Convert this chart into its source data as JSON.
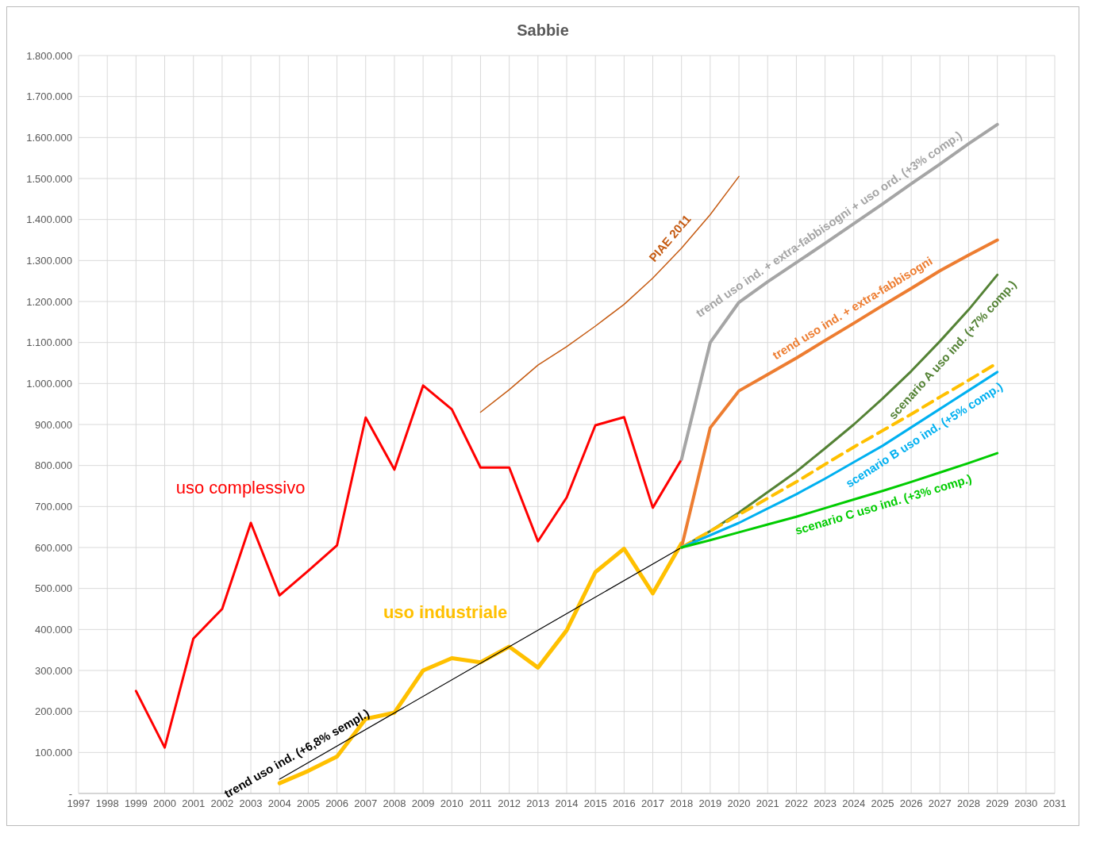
{
  "chart_data": {
    "type": "line",
    "title": "Sabbie",
    "xlim": [
      1997,
      2031
    ],
    "xticks": [
      1997,
      1998,
      1999,
      2000,
      2001,
      2002,
      2003,
      2004,
      2005,
      2006,
      2007,
      2008,
      2009,
      2010,
      2011,
      2012,
      2013,
      2014,
      2015,
      2016,
      2017,
      2018,
      2019,
      2020,
      2021,
      2022,
      2023,
      2024,
      2025,
      2026,
      2027,
      2028,
      2029,
      2030,
      2031
    ],
    "ylim": [
      0,
      1800000
    ],
    "yticks": [
      {
        "value": 0,
        "label": "-"
      },
      {
        "value": 100000,
        "label": "100.000"
      },
      {
        "value": 200000,
        "label": "200.000"
      },
      {
        "value": 300000,
        "label": "300.000"
      },
      {
        "value": 400000,
        "label": "400.000"
      },
      {
        "value": 500000,
        "label": "500.000"
      },
      {
        "value": 600000,
        "label": "600.000"
      },
      {
        "value": 700000,
        "label": "700.000"
      },
      {
        "value": 800000,
        "label": "800.000"
      },
      {
        "value": 900000,
        "label": "900.000"
      },
      {
        "value": 1000000,
        "label": "1.000.000"
      },
      {
        "value": 1100000,
        "label": "1.100.000"
      },
      {
        "value": 1200000,
        "label": "1.200.000"
      },
      {
        "value": 1300000,
        "label": "1.300.000"
      },
      {
        "value": 1400000,
        "label": "1.400.000"
      },
      {
        "value": 1500000,
        "label": "1.500.000"
      },
      {
        "value": 1600000,
        "label": "1.600.000"
      },
      {
        "value": 1700000,
        "label": "1.700.000"
      },
      {
        "value": 1800000,
        "label": "1.800.000"
      }
    ],
    "grid": true,
    "legend": false,
    "marker": "none",
    "series": [
      {
        "name": "uso complessivo",
        "color": "#ff0000",
        "x": [
          1999,
          2000,
          2001,
          2002,
          2003,
          2004,
          2005,
          2006,
          2007,
          2008,
          2009,
          2010,
          2011,
          2012,
          2013,
          2014,
          2015,
          2016,
          2017,
          2018
        ],
        "values": [
          250000,
          112000,
          378000,
          450000,
          660000,
          483000,
          543000,
          605000,
          917000,
          790000,
          995000,
          937000,
          795000,
          795000,
          615000,
          722000,
          898000,
          918000,
          697000,
          815000
        ]
      },
      {
        "name": "uso industriale",
        "color": "#ffc000",
        "x": [
          2004,
          2005,
          2006,
          2007,
          2008,
          2009,
          2010,
          2011,
          2012,
          2013,
          2014,
          2015,
          2016,
          2017,
          2018
        ],
        "values": [
          25000,
          55000,
          90000,
          182000,
          197000,
          300000,
          330000,
          320000,
          358000,
          307000,
          398000,
          540000,
          597000,
          488000,
          610000
        ]
      },
      {
        "name": "trend uso ind. (+6,8% sempl.)",
        "color": "#000000",
        "x": [
          2004,
          2018
        ],
        "values": [
          35000,
          600000
        ]
      },
      {
        "name": "PIAE 2011",
        "color": "#c55a11",
        "x": [
          2011,
          2012,
          2013,
          2014,
          2015,
          2016,
          2017,
          2018,
          2019,
          2020
        ],
        "values": [
          930000,
          985000,
          1045000,
          1090000,
          1140000,
          1193000,
          1257000,
          1330000,
          1412000,
          1505000
        ]
      },
      {
        "name": "trend uso ind. + extra-fabbisogni + uso ord. (+3% comp.)",
        "color": "#a5a5a5",
        "x": [
          2018,
          2019,
          2020,
          2021,
          2022,
          2023,
          2024,
          2025,
          2026,
          2027,
          2028,
          2029
        ],
        "values": [
          815000,
          1100000,
          1198000,
          1248000,
          1295000,
          1342000,
          1390000,
          1438000,
          1487000,
          1535000,
          1585000,
          1632000
        ]
      },
      {
        "name": "trend uso ind. + extra-fabbisogni",
        "color": "#ed7d31",
        "x": [
          2018,
          2019,
          2020,
          2021,
          2022,
          2023,
          2024,
          2025,
          2026,
          2027,
          2028,
          2029
        ],
        "values": [
          600000,
          892000,
          982000,
          1022000,
          1062000,
          1105000,
          1147000,
          1190000,
          1232000,
          1275000,
          1313000,
          1350000
        ]
      },
      {
        "name": "scenario A uso ind. (+7% comp.)",
        "color": "#548235",
        "x": [
          2018,
          2019,
          2020,
          2021,
          2022,
          2023,
          2024,
          2025,
          2026,
          2027,
          2028,
          2029
        ],
        "values": [
          600000,
          640000,
          685000,
          735000,
          785000,
          842000,
          900000,
          963000,
          1030000,
          1103000,
          1180000,
          1265000
        ]
      },
      {
        "color": "#ffc000",
        "line_style": "dashed",
        "x": [
          2018,
          2019,
          2020,
          2021,
          2022,
          2023,
          2024,
          2025,
          2026,
          2027,
          2028,
          2029
        ],
        "values": [
          600000,
          640000,
          680000,
          720000,
          760000,
          803000,
          845000,
          885000,
          925000,
          967000,
          1008000,
          1050000
        ]
      },
      {
        "name": "scenario B uso ind. (+5% comp.)",
        "color": "#00b0f0",
        "x": [
          2018,
          2019,
          2020,
          2021,
          2022,
          2023,
          2024,
          2025,
          2026,
          2027,
          2028,
          2029
        ],
        "values": [
          600000,
          630000,
          660000,
          695000,
          730000,
          768000,
          808000,
          848000,
          893000,
          938000,
          983000,
          1028000
        ]
      },
      {
        "name": "scenario C uso ind. (+3% comp.)",
        "color": "#00cc00",
        "x": [
          2018,
          2019,
          2020,
          2021,
          2022,
          2023,
          2024,
          2025,
          2026,
          2027,
          2028,
          2029
        ],
        "values": [
          600000,
          618000,
          637000,
          656000,
          675000,
          696000,
          717000,
          738000,
          760000,
          783000,
          806000,
          830000
        ]
      }
    ]
  }
}
